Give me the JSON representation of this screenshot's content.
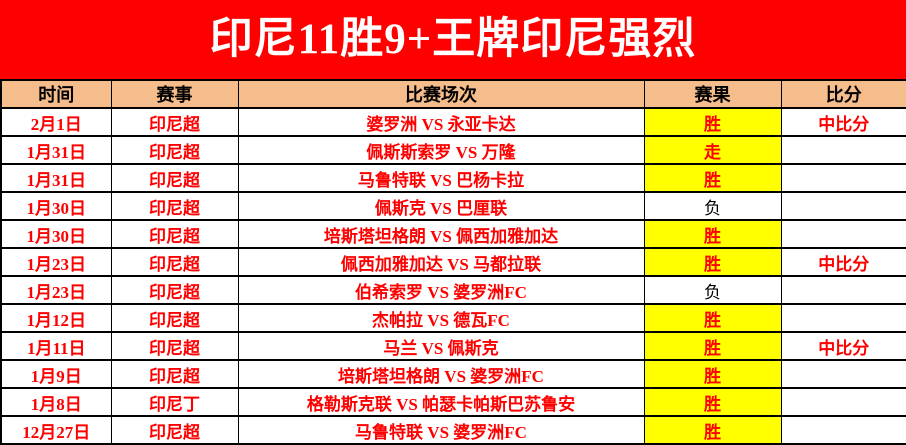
{
  "title": "印尼11胜9+王牌印尼强烈",
  "colors": {
    "banner_bg": "#FE0000",
    "banner_text": "#FFFFFF",
    "header_bg": "#F5BC8C",
    "win_highlight_bg": "#FFFF00",
    "cell_text_red": "#FE0000",
    "loss_text": "#000000"
  },
  "table": {
    "headers": [
      "时间",
      "赛事",
      "比赛场次",
      "赛果",
      "比分"
    ],
    "rows": [
      {
        "date": "2月1日",
        "league": "印尼超",
        "match": "婆罗洲 VS 永亚卡达",
        "result": "胜",
        "highlight": true,
        "score": "中比分"
      },
      {
        "date": "1月31日",
        "league": "印尼超",
        "match": "佩斯斯索罗 VS 万隆",
        "result": "走",
        "highlight": true,
        "score": ""
      },
      {
        "date": "1月31日",
        "league": "印尼超",
        "match": "马鲁特联 VS 巴杨卡拉",
        "result": "胜",
        "highlight": true,
        "score": ""
      },
      {
        "date": "1月30日",
        "league": "印尼超",
        "match": "佩斯克 VS 巴厘联",
        "result": "负",
        "highlight": false,
        "score": ""
      },
      {
        "date": "1月30日",
        "league": "印尼超",
        "match": "培斯塔坦格朗 VS 佩西加雅加达",
        "result": "胜",
        "highlight": true,
        "score": ""
      },
      {
        "date": "1月23日",
        "league": "印尼超",
        "match": "佩西加雅加达 VS 马都拉联",
        "result": "胜",
        "highlight": true,
        "score": "中比分"
      },
      {
        "date": "1月23日",
        "league": "印尼超",
        "match": "伯希索罗 VS 婆罗洲FC",
        "result": "负",
        "highlight": false,
        "score": ""
      },
      {
        "date": "1月12日",
        "league": "印尼超",
        "match": "杰帕拉 VS 德瓦FC",
        "result": "胜",
        "highlight": true,
        "score": ""
      },
      {
        "date": "1月11日",
        "league": "印尼超",
        "match": "马兰 VS 佩斯克",
        "result": "胜",
        "highlight": true,
        "score": "中比分"
      },
      {
        "date": "1月9日",
        "league": "印尼超",
        "match": "培斯塔坦格朗 VS 婆罗洲FC",
        "result": "胜",
        "highlight": true,
        "score": ""
      },
      {
        "date": "1月8日",
        "league": "印尼丁",
        "match": "格勒斯克联 VS 帕瑟卡帕斯巴苏鲁安",
        "result": "胜",
        "highlight": true,
        "score": ""
      },
      {
        "date": "12月27日",
        "league": "印尼超",
        "match": "马鲁特联 VS 婆罗洲FC",
        "result": "胜",
        "highlight": true,
        "score": ""
      }
    ]
  }
}
